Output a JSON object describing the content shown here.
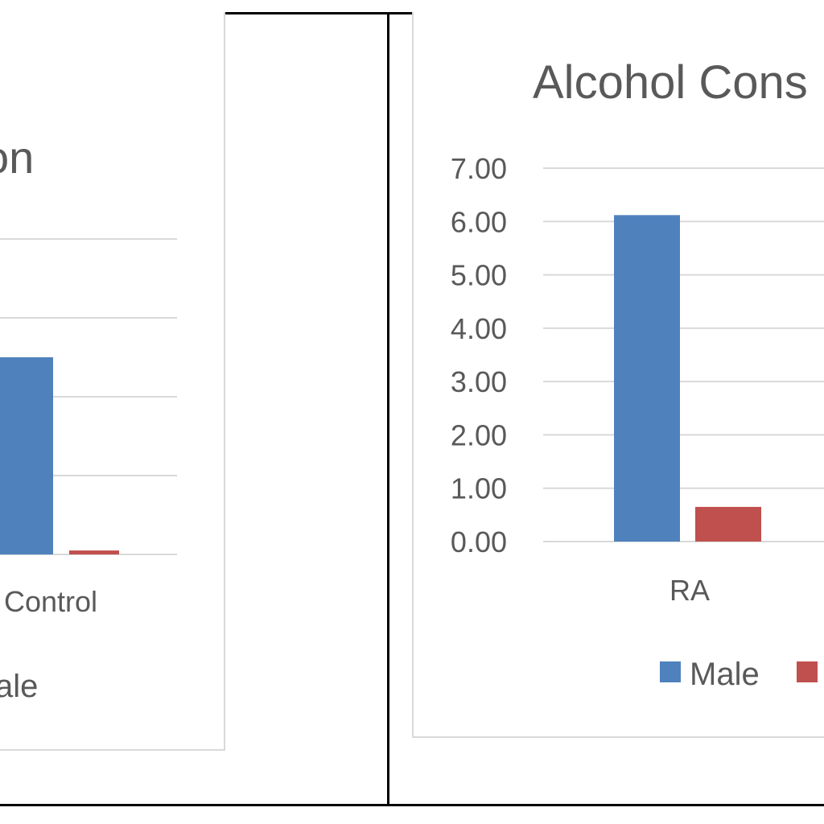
{
  "chart_data": [
    {
      "type": "bar",
      "title": "…on",
      "categories": [
        "…Control"
      ],
      "category_labels_visible": [
        "Control"
      ],
      "series": [
        {
          "name": "…",
          "values": [
            2.5
          ]
        },
        {
          "name": "…ale",
          "values": [
            0.05
          ]
        }
      ],
      "legend_visible_text": "ale",
      "ylim": [
        0,
        6
      ],
      "grid": true,
      "colors": [
        "#4f81bd",
        "#c0504d"
      ]
    },
    {
      "type": "bar",
      "title": "Alcohol Cons",
      "categories": [
        "RA"
      ],
      "series": [
        {
          "name": "Male",
          "values": [
            6.12
          ]
        },
        {
          "name": "",
          "values": [
            0.65
          ]
        }
      ],
      "yticks": [
        "0.00",
        "1.00",
        "2.00",
        "3.00",
        "4.00",
        "5.00",
        "6.00",
        "7.00"
      ],
      "ylim": [
        0,
        7
      ],
      "grid": true,
      "legend": "bottom",
      "colors": [
        "#4f81bd",
        "#c0504d"
      ]
    }
  ]
}
